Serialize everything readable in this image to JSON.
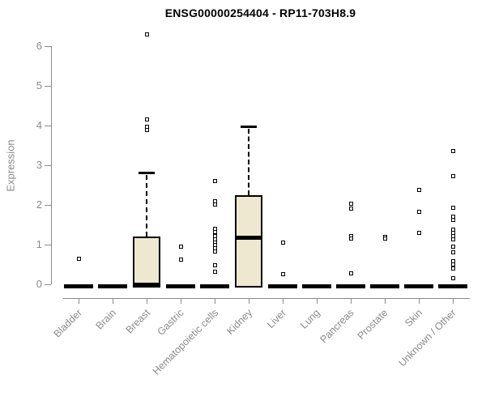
{
  "chart_data": {
    "type": "box",
    "title": "ENSG00000254404 - RP11-703H8.9",
    "ylabel": "Expression",
    "xlabel": "",
    "ylim": [
      0,
      6
    ],
    "yticks": [
      0,
      1,
      2,
      3,
      4,
      5,
      6
    ],
    "grid": false,
    "legend": "none",
    "categories": [
      "Bladder",
      "Brain",
      "Breast",
      "Gastric",
      "Hematopoietic cells",
      "Kidney",
      "Liver",
      "Lung",
      "Pancreas",
      "Prostate",
      "Skin",
      "Unknown / Other"
    ],
    "series": [
      {
        "category": "Bladder",
        "low": 0,
        "q1": 0,
        "median": 0,
        "q3": 0,
        "high": 0,
        "outliers": [
          0.65
        ]
      },
      {
        "category": "Brain",
        "low": 0,
        "q1": 0,
        "median": 0,
        "q3": 0,
        "high": 0,
        "outliers": []
      },
      {
        "category": "Breast",
        "low": 0,
        "q1": 0,
        "median": 0,
        "q3": 1.2,
        "high": 2.82,
        "outliers": [
          6.3,
          4.15,
          3.97,
          3.88
        ]
      },
      {
        "category": "Gastric",
        "low": 0,
        "q1": 0,
        "median": 0,
        "q3": 0,
        "high": 0,
        "outliers": [
          0.94,
          0.63
        ]
      },
      {
        "category": "Hematopoietic cells",
        "low": 0,
        "q1": 0,
        "median": 0,
        "q3": 0,
        "high": 0,
        "outliers": [
          2.61,
          2.1,
          2.02,
          1.39,
          1.31,
          1.22,
          1.14,
          1.06,
          0.98,
          0.9,
          0.82,
          0.47,
          0.31
        ]
      },
      {
        "category": "Kidney",
        "low": 0,
        "q1": 0,
        "median": 1.18,
        "q3": 2.24,
        "high": 3.98,
        "outliers": []
      },
      {
        "category": "Liver",
        "low": 0,
        "q1": 0,
        "median": 0,
        "q3": 0,
        "high": 0,
        "outliers": [
          1.06,
          0.25
        ]
      },
      {
        "category": "Lung",
        "low": 0,
        "q1": 0,
        "median": 0,
        "q3": 0,
        "high": 0,
        "outliers": []
      },
      {
        "category": "Pancreas",
        "low": 0,
        "q1": 0,
        "median": 0,
        "q3": 0,
        "high": 0,
        "outliers": [
          2.04,
          1.9,
          1.22,
          1.15,
          0.27
        ]
      },
      {
        "category": "Prostate",
        "low": 0,
        "q1": 0,
        "median": 0,
        "q3": 0,
        "high": 0,
        "outliers": [
          1.2,
          1.15
        ]
      },
      {
        "category": "Skin",
        "low": 0,
        "q1": 0,
        "median": 0,
        "q3": 0,
        "high": 0,
        "outliers": [
          2.37,
          1.82,
          1.29
        ]
      },
      {
        "category": "Unknown / Other",
        "low": 0,
        "q1": 0,
        "median": 0,
        "q3": 0,
        "high": 0,
        "outliers": [
          3.35,
          2.73,
          1.92,
          1.71,
          1.63,
          1.37,
          1.29,
          1.21,
          1.14,
          0.94,
          0.8,
          0.59,
          0.49,
          0.39,
          0.16
        ]
      }
    ],
    "colors": {
      "box_fill": "#ede8cf",
      "box_border": "#000000",
      "median": "#000000",
      "whisker": "#000000",
      "outlier_border": "#000000",
      "axis": "#8a8a8a",
      "tick_label": "#8a8a8a",
      "title": "#000000",
      "background": "#ffffff"
    }
  }
}
